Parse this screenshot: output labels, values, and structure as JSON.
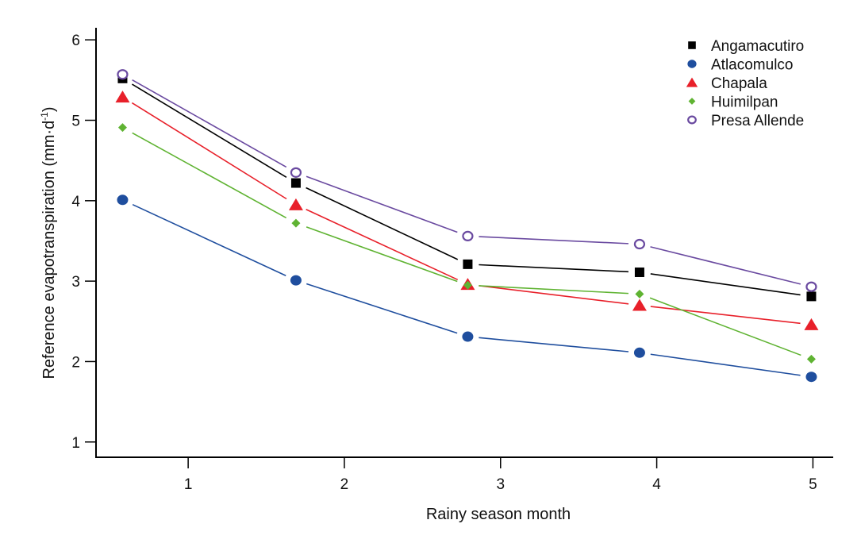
{
  "chart_data": {
    "type": "line",
    "title": "",
    "xlabel": "Rainy season month",
    "ylabel": "Reference evapotranspiration (mm·d",
    "ylabel_sup": "-1",
    "ylabel_end": ")",
    "xlim": [
      0.41,
      5.13
    ],
    "ylim": [
      0.81,
      6.15
    ],
    "xticks": [
      1,
      2,
      3,
      4,
      5
    ],
    "yticks": [
      1,
      2,
      3,
      4,
      5,
      6
    ],
    "grid": false,
    "legend_position": "top-right",
    "x": [
      0.58,
      1.69,
      2.79,
      3.89,
      4.99
    ],
    "series": [
      {
        "name": "Angamacutiro",
        "color": "#000000",
        "marker": "square",
        "values": [
          5.52,
          4.22,
          3.21,
          3.11,
          2.81
        ]
      },
      {
        "name": "Atlacomulco",
        "color": "#1f4e9e",
        "marker": "circle",
        "values": [
          4.01,
          3.01,
          2.31,
          2.11,
          1.81
        ]
      },
      {
        "name": "Chapala",
        "color": "#e8202a",
        "marker": "triangle",
        "values": [
          5.29,
          3.95,
          2.96,
          2.7,
          2.46
        ]
      },
      {
        "name": "Huimilpan",
        "color": "#5fb332",
        "marker": "diamond",
        "values": [
          4.91,
          3.72,
          2.95,
          2.84,
          2.03
        ]
      },
      {
        "name": "Presa Allende",
        "color": "#6a4aa0",
        "marker": "open-circle",
        "values": [
          5.57,
          4.35,
          3.56,
          3.46,
          2.93
        ]
      }
    ]
  }
}
